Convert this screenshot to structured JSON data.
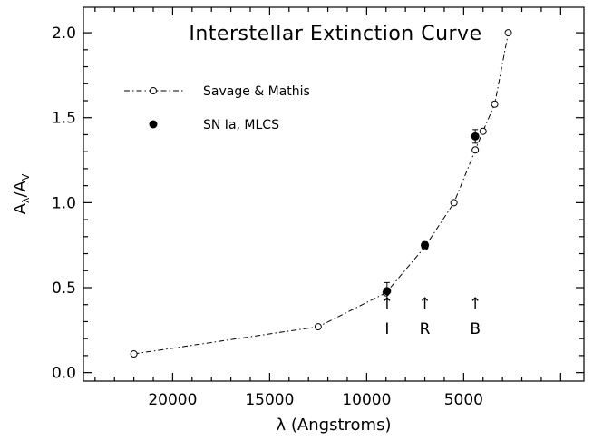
{
  "chart_data": {
    "type": "scatter",
    "title": "Interstellar Extinction Curve",
    "xlabel": "λ (Angstroms)",
    "ylabel": "Aλ/AV",
    "ylabel_parts": {
      "base1": "A",
      "sub1": "λ",
      "sep": "/",
      "base2": "A",
      "sub2": "V"
    },
    "xlim": [
      24600,
      -1200
    ],
    "ylim": [
      -0.05,
      2.15
    ],
    "x_reversed": true,
    "x_ticks": [
      20000,
      15000,
      10000,
      5000
    ],
    "x_tick_labels": [
      "20000",
      "15000",
      "10000",
      "5000"
    ],
    "y_ticks": [
      0.0,
      0.5,
      1.0,
      1.5,
      2.0
    ],
    "y_tick_labels": [
      "0.0",
      "0.5",
      "1.0",
      "1.5",
      "2.0"
    ],
    "grid": false,
    "legend_position": "top-left",
    "series": [
      {
        "name": "Savage & Mathis",
        "style": "dash-dot line with open circles",
        "points": [
          {
            "x": 22000,
            "y": 0.11
          },
          {
            "x": 12500,
            "y": 0.27
          },
          {
            "x": 9000,
            "y": 0.47
          },
          {
            "x": 7000,
            "y": 0.74
          },
          {
            "x": 5500,
            "y": 1.0
          },
          {
            "x": 4400,
            "y": 1.31
          },
          {
            "x": 4000,
            "y": 1.42
          },
          {
            "x": 3400,
            "y": 1.58
          },
          {
            "x": 2700,
            "y": 2.0
          }
        ]
      },
      {
        "name": "SN Ia, MLCS",
        "style": "filled circles with error bars",
        "points": [
          {
            "x": 8950,
            "y": 0.48,
            "err": 0.05
          },
          {
            "x": 7000,
            "y": 0.75,
            "err": 0.02
          },
          {
            "x": 4400,
            "y": 1.39,
            "err": 0.04
          }
        ]
      }
    ],
    "band_annotations": [
      {
        "label": "I",
        "x": 8950,
        "y": 0.26
      },
      {
        "label": "R",
        "x": 7000,
        "y": 0.26
      },
      {
        "label": "B",
        "x": 4400,
        "y": 0.26
      }
    ],
    "band_arrow_glyph": "↑"
  }
}
